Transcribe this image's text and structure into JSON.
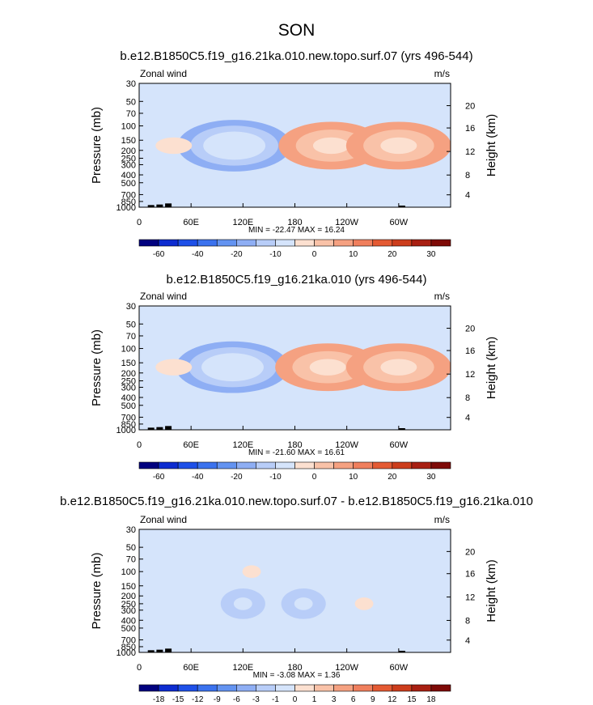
{
  "figure": {
    "title": "SON"
  },
  "chart_data": [
    {
      "type": "heatmap",
      "title": "b.e12.B1850C5.f19_g16.21ka.010.new.topo.surf.07 (yrs 496-544)",
      "left_label": "Zonal wind",
      "units_label": "m/s",
      "ylabel": "Pressure (mb)",
      "ylabel_right": "Height (km)",
      "x_ticks": [
        "0",
        "60E",
        "120E",
        "180",
        "120W",
        "60W"
      ],
      "y_ticks": [
        "30",
        "50",
        "70",
        "100",
        "150",
        "200",
        "250",
        "300",
        "400",
        "500",
        "700",
        "850",
        "1000"
      ],
      "height_ticks": [
        "20",
        "16",
        "12",
        "8",
        "4"
      ],
      "stats": "MIN = -22.47   MAX =  16.24",
      "min": -22.47,
      "max": 16.24,
      "colorbar_labels": [
        "-60",
        "-40",
        "-20",
        "-10",
        "0",
        "10",
        "20",
        "30"
      ],
      "features": [
        {
          "lon": 110,
          "p": 175,
          "value": -22
        },
        {
          "lon": 222,
          "p": 175,
          "value": 13
        },
        {
          "lon": 300,
          "p": 175,
          "value": 16
        },
        {
          "lon": 40,
          "p": 175,
          "value": 3
        }
      ]
    },
    {
      "type": "heatmap",
      "title": "b.e12.B1850C5.f19_g16.21ka.010 (yrs 496-544)",
      "left_label": "Zonal wind",
      "units_label": "m/s",
      "ylabel": "Pressure (mb)",
      "ylabel_right": "Height (km)",
      "x_ticks": [
        "0",
        "60E",
        "120E",
        "180",
        "120W",
        "60W"
      ],
      "y_ticks": [
        "30",
        "50",
        "70",
        "100",
        "150",
        "200",
        "250",
        "300",
        "400",
        "500",
        "700",
        "850",
        "1000"
      ],
      "height_ticks": [
        "20",
        "16",
        "12",
        "8",
        "4"
      ],
      "stats": "MIN = -21.60   MAX =  16.61",
      "min": -21.6,
      "max": 16.61,
      "colorbar_labels": [
        "-60",
        "-40",
        "-20",
        "-10",
        "0",
        "10",
        "20",
        "30"
      ],
      "features": [
        {
          "lon": 108,
          "p": 170,
          "value": -21
        },
        {
          "lon": 218,
          "p": 170,
          "value": 13
        },
        {
          "lon": 300,
          "p": 170,
          "value": 16
        },
        {
          "lon": 40,
          "p": 170,
          "value": 3
        }
      ]
    },
    {
      "type": "heatmap",
      "title": "b.e12.B1850C5.f19_g16.21ka.010.new.topo.surf.07 - b.e12.B1850C5.f19_g16.21ka.010",
      "left_label": "Zonal wind",
      "units_label": "m/s",
      "ylabel": "Pressure (mb)",
      "ylabel_right": "Height (km)",
      "x_ticks": [
        "0",
        "60E",
        "120E",
        "180",
        "120W",
        "60W"
      ],
      "y_ticks": [
        "30",
        "50",
        "70",
        "100",
        "150",
        "200",
        "250",
        "300",
        "400",
        "500",
        "700",
        "850",
        "1000"
      ],
      "height_ticks": [
        "20",
        "16",
        "12",
        "8",
        "4"
      ],
      "stats": "MIN =  -3.08   MAX =   1.36",
      "min": -3.08,
      "max": 1.36,
      "colorbar_labels": [
        "-18",
        "-15",
        "-12",
        "-9",
        "-6",
        "-3",
        "-1",
        "0",
        "1",
        "3",
        "6",
        "9",
        "12",
        "15",
        "18"
      ],
      "features": [
        {
          "lon": 120,
          "p": 250,
          "value": -2
        },
        {
          "lon": 190,
          "p": 250,
          "value": -2
        },
        {
          "lon": 260,
          "p": 250,
          "value": 1
        },
        {
          "lon": 130,
          "p": 100,
          "value": 1
        }
      ]
    }
  ],
  "colorbar_colors": [
    "#01017f",
    "#0d2cd0",
    "#1e50e8",
    "#3b72ee",
    "#6393f1",
    "#8eaef4",
    "#b8cdf8",
    "#d5e4fb",
    "#fce0d0",
    "#f9c2a8",
    "#f5a181",
    "#f07f5d",
    "#e45a33",
    "#cc3d1c",
    "#a81f12",
    "#7e0a07"
  ]
}
